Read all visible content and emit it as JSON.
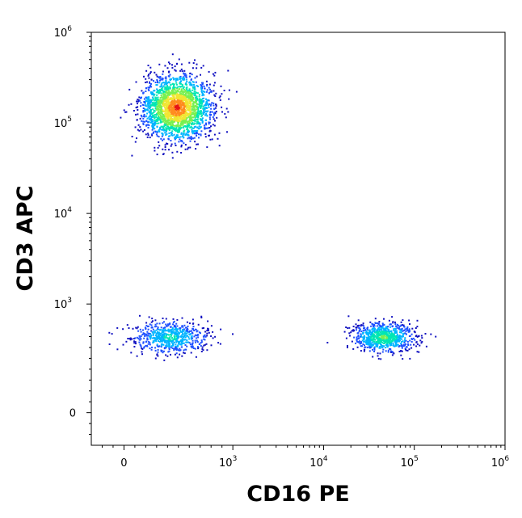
{
  "chart_data": {
    "type": "scatter",
    "style": "density-dot-plot",
    "xlabel": "CD16 PE",
    "ylabel": "CD3 APC",
    "x_scale": "biexponential",
    "y_scale": "biexponential",
    "xlim": [
      -300,
      1000000
    ],
    "ylim": [
      -300,
      1000000
    ],
    "x_ticks": [
      {
        "value": 0,
        "base": "0",
        "exp": ""
      },
      {
        "value": 1000,
        "base": "10",
        "exp": "3"
      },
      {
        "value": 10000,
        "base": "10",
        "exp": "4"
      },
      {
        "value": 100000,
        "base": "10",
        "exp": "5"
      },
      {
        "value": 1000000,
        "base": "10",
        "exp": "6"
      }
    ],
    "y_ticks": [
      {
        "value": 0,
        "base": "0",
        "exp": ""
      },
      {
        "value": 1000,
        "base": "10",
        "exp": "3"
      },
      {
        "value": 10000,
        "base": "10",
        "exp": "4"
      },
      {
        "value": 100000,
        "base": "10",
        "exp": "5"
      },
      {
        "value": 1000000,
        "base": "10",
        "exp": "6"
      }
    ],
    "grid": false,
    "legend": "none",
    "density_colors": [
      "#1010c0",
      "#1e50ff",
      "#00b4ff",
      "#00e6b4",
      "#78f050",
      "#f0e632",
      "#ff8c1e",
      "#e61414"
    ],
    "populations": [
      {
        "x_center": 480,
        "y_center": 150000,
        "x_spread_decades": 0.19,
        "y_spread_decades": 0.18,
        "count": 2200,
        "peak_color": "#e61414"
      },
      {
        "x_center": 420,
        "y_center": 700,
        "x_spread_decades": 0.2,
        "y_spread_decades": 0.09,
        "count": 650,
        "peak_color": "#00e6b4"
      },
      {
        "x_center": 45000,
        "y_center": 700,
        "x_spread_decades": 0.17,
        "y_spread_decades": 0.08,
        "count": 800,
        "peak_color": "#78f050"
      }
    ]
  }
}
